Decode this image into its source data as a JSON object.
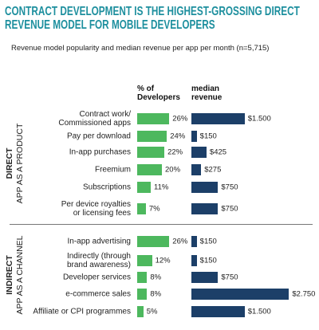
{
  "chart_data": {
    "type": "bar",
    "title": "CONTRACT DEVELOPMENT IS THE HIGHEST-GROSSING DIRECT\nREVENUE MODEL FOR MOBILE DEVELOPERS",
    "subtitle": "Revenue model popularity and median revenue per app per month (n=5,715)",
    "columns": [
      {
        "name": "% of\nDevelopers",
        "color": "#4db85e"
      },
      {
        "name": "median\nrevenue",
        "color": "#1c3f68"
      }
    ],
    "groups": [
      {
        "name": "DIRECT",
        "label": "APP AS A PRODUCT",
        "categories": [
          "Contract work/\nCommissioned apps",
          "Pay per download",
          "In-app purchases",
          "Freemium",
          "Subscriptions",
          "Per device royalties\nor licensing fees"
        ],
        "series": [
          {
            "values": [
              26,
              24,
              22,
              20,
              11,
              7
            ],
            "value_labels": [
              "26%",
              "24%",
              "22%",
              "20%",
              "11%",
              "7%"
            ]
          },
          {
            "values": [
              1500,
              150,
              425,
              275,
              750,
              750
            ],
            "value_labels": [
              "$1.500",
              "$150",
              "$425",
              "$275",
              "$750",
              "$750"
            ]
          }
        ]
      },
      {
        "name": "INDIRECT",
        "label": "APP AS A CHANNEL",
        "categories": [
          "In-app advertising",
          "Indirectly (through\nbrand awareness)",
          "Developer services",
          "e-commerce sales",
          "Affiliate or CPI programmes"
        ],
        "series": [
          {
            "values": [
              26,
              12,
              8,
              8,
              5
            ],
            "value_labels": [
              "26%",
              "12%",
              "8%",
              "8%",
              "5%"
            ]
          },
          {
            "values": [
              150,
              150,
              750,
              2750,
              1500
            ],
            "value_labels": [
              "$150",
              "$150",
              "$750",
              "$2.750",
              "$1.500"
            ]
          }
        ]
      }
    ]
  }
}
